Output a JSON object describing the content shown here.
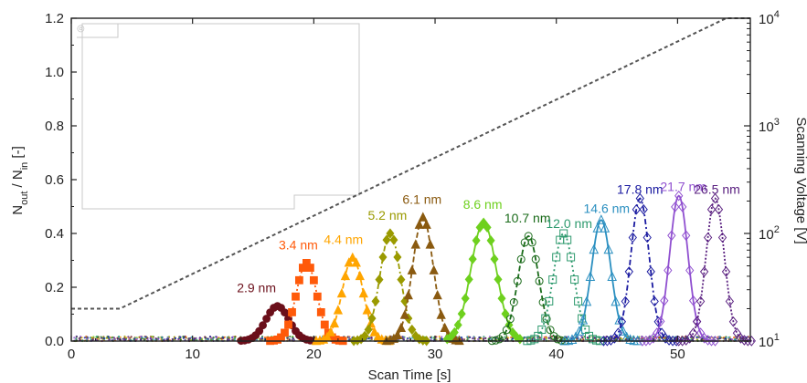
{
  "chart_data": {
    "type": "line",
    "xlabel": "Scan Time [s]",
    "ylabel": {
      "main": "N",
      "sub1": "out",
      "mid": " / N",
      "sub2": "in",
      "tail": " [-]"
    },
    "y2label": "Scanning Voltage [V]",
    "xlim": [
      0,
      56
    ],
    "ylim": [
      0,
      1.2
    ],
    "y2lim": [
      10,
      10000
    ],
    "y2scale": "log",
    "xticks": [
      0,
      10,
      20,
      30,
      40,
      50
    ],
    "yticks": [
      0.0,
      0.2,
      0.4,
      0.6,
      0.8,
      1.0,
      1.2
    ],
    "yticklabels": [
      "0.0",
      "0.2",
      "0.4",
      "0.6",
      "0.8",
      "1.0",
      "1.2"
    ],
    "y2ticks": [
      {
        "value": 10,
        "base": "10",
        "exp": "1"
      },
      {
        "value": 100,
        "base": "10",
        "exp": "2"
      },
      {
        "value": 1000,
        "base": "10",
        "exp": "3"
      },
      {
        "value": 10000,
        "base": "10",
        "exp": "4"
      }
    ],
    "inset_legend_text": "◎",
    "voltage_curve": {
      "color": "#555555",
      "points": [
        [
          0,
          20
        ],
        [
          4,
          20
        ],
        [
          54,
          10000
        ],
        [
          56,
          10000
        ]
      ]
    },
    "series": [
      {
        "name": "2.9 nm",
        "center": 17.0,
        "peak": 0.13,
        "sigma": 0.95,
        "color": "#6b0f1a",
        "marker": "circle-filled",
        "dash": "5,3"
      },
      {
        "name": "3.4 nm",
        "center": 19.4,
        "peak": 0.29,
        "sigma": 0.85,
        "color": "#ff5a0a",
        "marker": "square-filled",
        "dash": "2,3"
      },
      {
        "name": "4.4 nm",
        "center": 23.2,
        "peak": 0.31,
        "sigma": 0.85,
        "color": "#ffa500",
        "marker": "triangle-filled",
        "dash": "6,3"
      },
      {
        "name": "5.2 nm",
        "center": 26.3,
        "peak": 0.4,
        "sigma": 0.85,
        "color": "#9a9a00",
        "marker": "diamond-filled",
        "dash": "6,3,2,3"
      },
      {
        "name": "6.1 nm",
        "center": 29.0,
        "peak": 0.46,
        "sigma": 0.85,
        "color": "#8a5a10",
        "marker": "triangle-filled",
        "dash": "6,3"
      },
      {
        "name": "8.6 nm",
        "center": 34.0,
        "peak": 0.44,
        "sigma": 1.05,
        "color": "#6ed01e",
        "marker": "diamond-filled",
        "dash": ""
      },
      {
        "name": "10.7 nm",
        "center": 37.7,
        "peak": 0.39,
        "sigma": 0.85,
        "color": "#1a6b1a",
        "marker": "circle-open",
        "dash": "6,3"
      },
      {
        "name": "12.0 nm",
        "center": 40.6,
        "peak": 0.4,
        "sigma": 0.85,
        "color": "#2e9a6e",
        "marker": "square-open",
        "dash": "2,3"
      },
      {
        "name": "14.6 nm",
        "center": 43.7,
        "peak": 0.45,
        "sigma": 0.8,
        "color": "#2a8fc0",
        "marker": "triangle-open",
        "dash": ""
      },
      {
        "name": "17.8 nm",
        "center": 46.9,
        "peak": 0.53,
        "sigma": 0.75,
        "color": "#1a1aa0",
        "marker": "diamond-open",
        "dash": "6,3,2,3"
      },
      {
        "name": "21.7 nm",
        "center": 50.1,
        "peak": 0.54,
        "sigma": 0.75,
        "color": "#9050d0",
        "marker": "diamond-open",
        "dash": ""
      },
      {
        "name": "26.5 nm",
        "center": 53.1,
        "peak": 0.53,
        "sigma": 0.75,
        "color": "#5a2080",
        "marker": "diamond-open",
        "dash": "2,2"
      }
    ]
  }
}
